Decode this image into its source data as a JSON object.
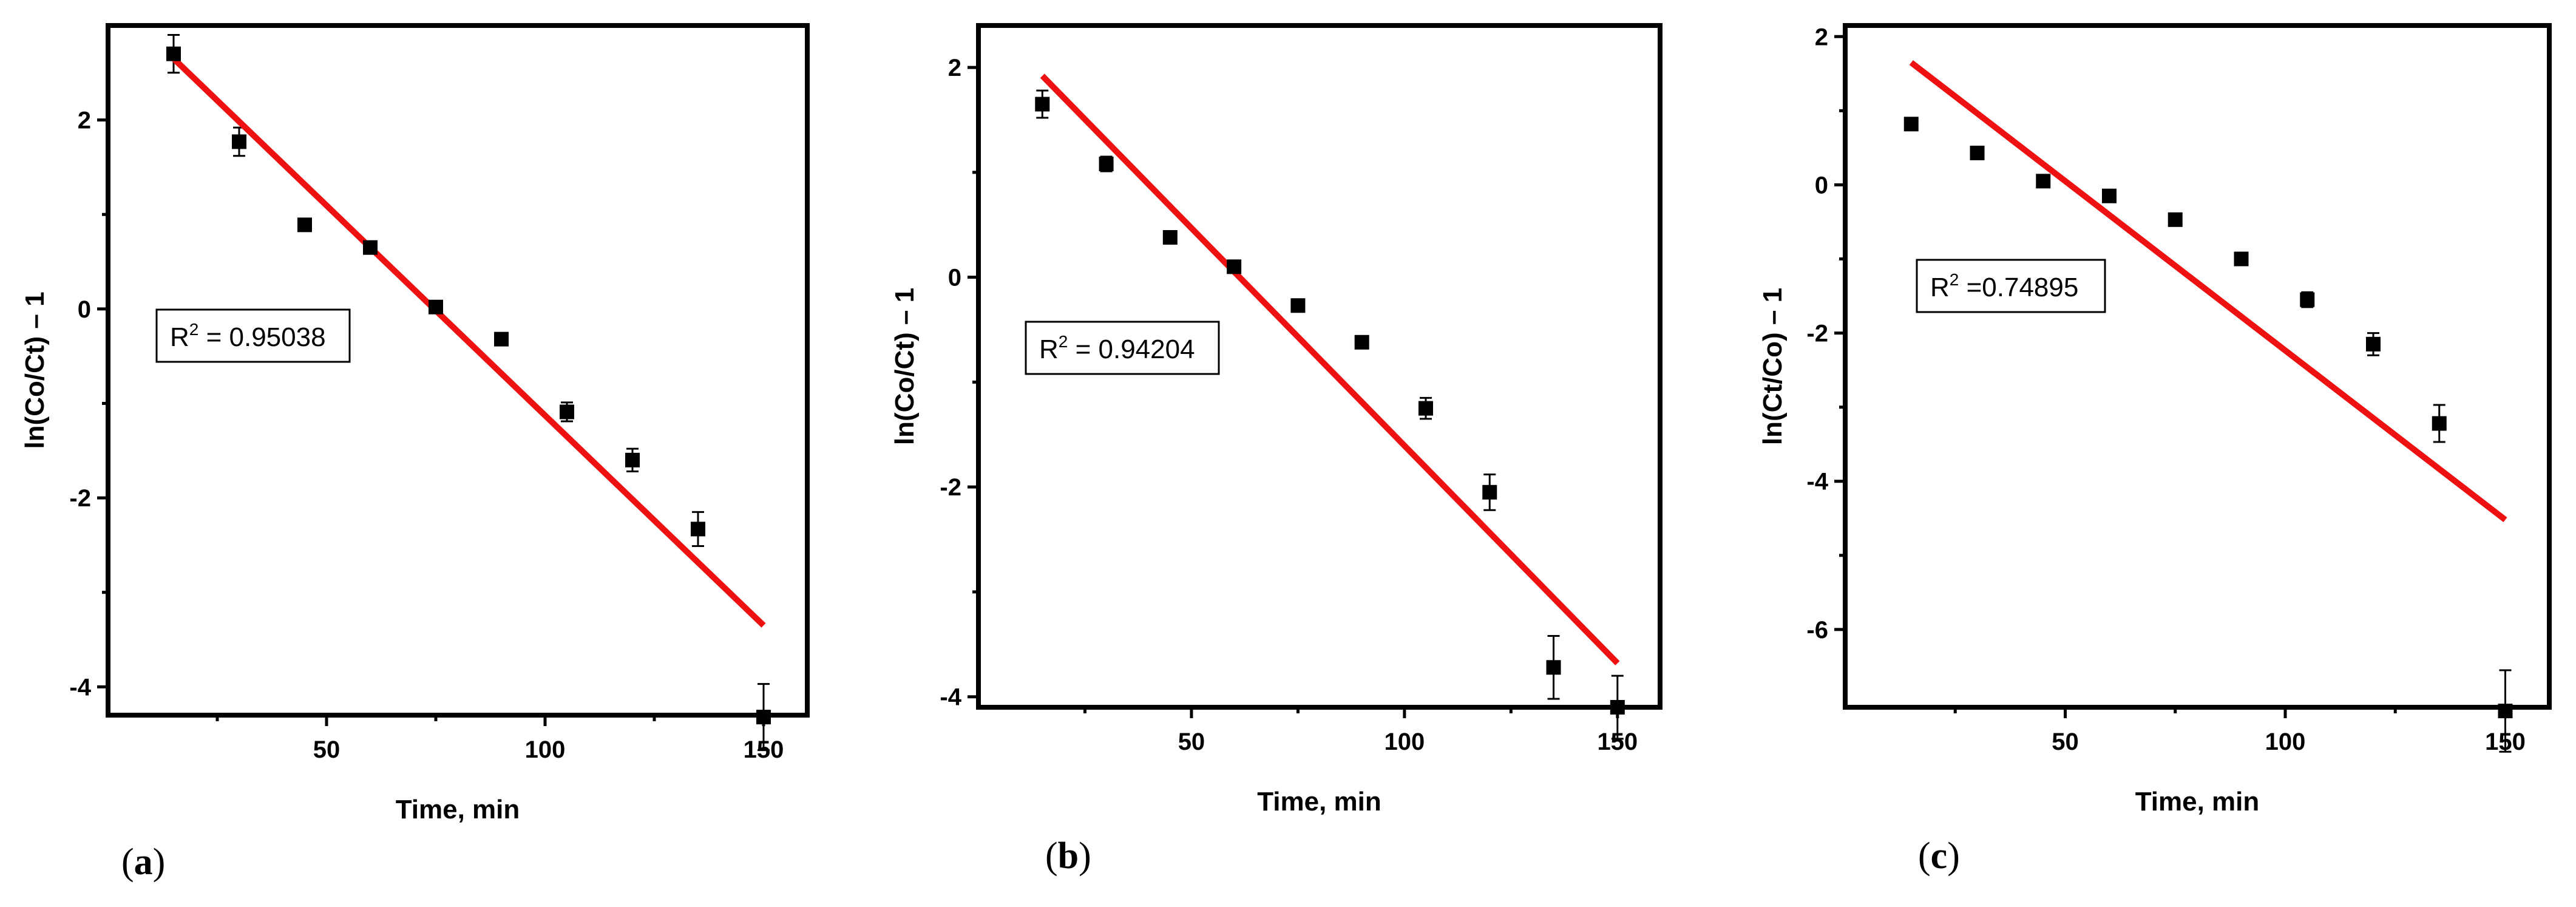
{
  "colors": {
    "fit_line": "#ee1111",
    "points": "#000000",
    "frame": "#000000"
  },
  "chart_data": [
    {
      "type": "scatter",
      "panel_label": "a",
      "xlabel": "Time, min",
      "ylabel": "ln(Co/Ct) – 1",
      "xlim": [
        0,
        160
      ],
      "ylim": [
        -4.3,
        3.0
      ],
      "xticks": [
        50,
        100,
        150
      ],
      "yticks": [
        -4,
        -2,
        0,
        2
      ],
      "r2_text": "0.95038",
      "r2_sep": " = ",
      "points": [
        {
          "x": 15,
          "y": 2.7,
          "err": 0.2
        },
        {
          "x": 30,
          "y": 1.77,
          "err": 0.15
        },
        {
          "x": 45,
          "y": 0.89,
          "err": 0.05
        },
        {
          "x": 60,
          "y": 0.65,
          "err": 0.05
        },
        {
          "x": 75,
          "y": 0.02,
          "err": 0.05
        },
        {
          "x": 90,
          "y": -0.32,
          "err": 0.05
        },
        {
          "x": 105,
          "y": -1.09,
          "err": 0.1
        },
        {
          "x": 120,
          "y": -1.6,
          "err": 0.12
        },
        {
          "x": 135,
          "y": -2.33,
          "err": 0.18
        },
        {
          "x": 150,
          "y": -4.32,
          "err": 0.35
        }
      ],
      "fit": {
        "x": [
          15,
          150
        ],
        "y": [
          2.65,
          -3.35
        ]
      }
    },
    {
      "type": "scatter",
      "panel_label": "b",
      "xlabel": "Time, min",
      "ylabel": "ln(Co/Ct) – 1",
      "xlim": [
        0,
        160
      ],
      "ylim": [
        -4.1,
        2.4
      ],
      "xticks": [
        50,
        100,
        150
      ],
      "yticks": [
        -4,
        -2,
        0,
        2
      ],
      "r2_text": "0.94204",
      "r2_sep": " = ",
      "points": [
        {
          "x": 15,
          "y": 1.65,
          "err": 0.13
        },
        {
          "x": 30,
          "y": 1.08,
          "err": 0.07
        },
        {
          "x": 45,
          "y": 0.38,
          "err": 0.04
        },
        {
          "x": 60,
          "y": 0.1,
          "err": 0.04
        },
        {
          "x": 75,
          "y": -0.27,
          "err": 0.04
        },
        {
          "x": 90,
          "y": -0.62,
          "err": 0.04
        },
        {
          "x": 105,
          "y": -1.25,
          "err": 0.1
        },
        {
          "x": 120,
          "y": -2.05,
          "err": 0.17
        },
        {
          "x": 135,
          "y": -3.72,
          "err": 0.3
        },
        {
          "x": 150,
          "y": -4.1,
          "err": 0.3
        }
      ],
      "fit": {
        "x": [
          15,
          150
        ],
        "y": [
          1.92,
          -3.68
        ]
      }
    },
    {
      "type": "scatter",
      "panel_label": "c",
      "xlabel": "Time, min",
      "ylabel": "ln(Ct/Co) – 1",
      "xlim": [
        0,
        160
      ],
      "ylim": [
        -7.05,
        2.15
      ],
      "xticks": [
        50,
        100,
        150
      ],
      "yticks": [
        -6,
        -4,
        -2,
        0,
        2
      ],
      "r2_text": "0.74895",
      "r2_sep": " =",
      "points": [
        {
          "x": 15,
          "y": 0.82,
          "err": 0.06
        },
        {
          "x": 30,
          "y": 0.43,
          "err": 0.06
        },
        {
          "x": 45,
          "y": 0.05,
          "err": 0.05
        },
        {
          "x": 60,
          "y": -0.15,
          "err": 0.05
        },
        {
          "x": 75,
          "y": -0.47,
          "err": 0.05
        },
        {
          "x": 90,
          "y": -1.0,
          "err": 0.05
        },
        {
          "x": 105,
          "y": -1.55,
          "err": 0.1
        },
        {
          "x": 120,
          "y": -2.15,
          "err": 0.15
        },
        {
          "x": 135,
          "y": -3.22,
          "err": 0.25
        },
        {
          "x": 150,
          "y": -7.1,
          "err": 0.55
        }
      ],
      "fit": {
        "x": [
          15,
          150
        ],
        "y": [
          1.65,
          -4.52
        ]
      }
    }
  ]
}
